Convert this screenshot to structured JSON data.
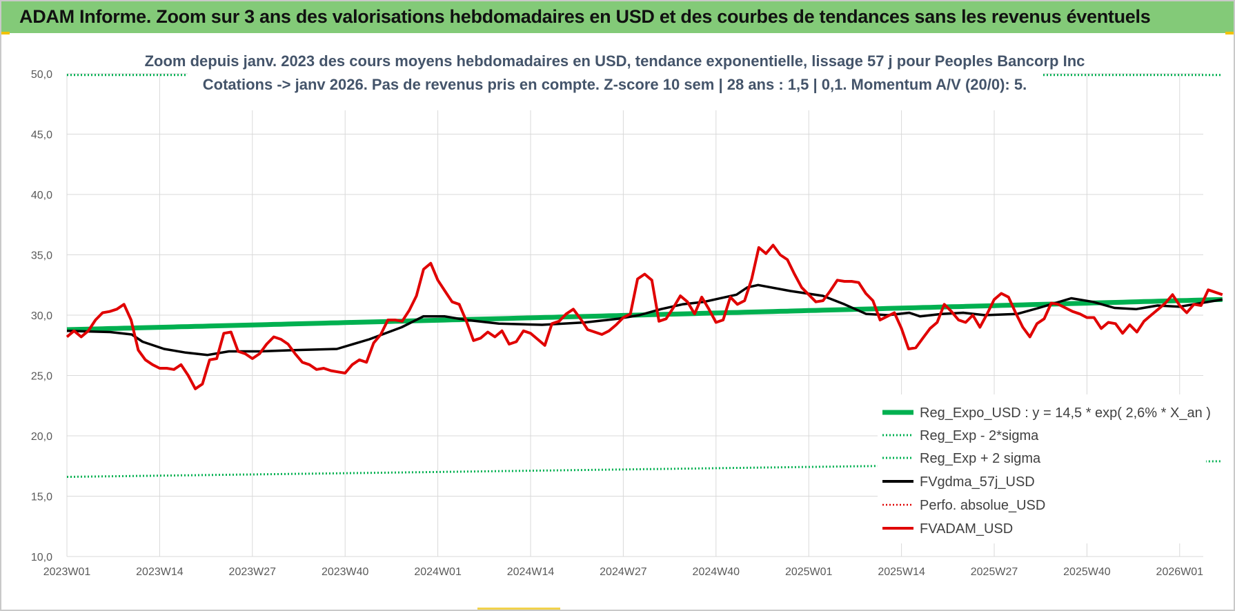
{
  "header": {
    "title": "ADAM Informe. Zoom sur 3 ans des valorisations hebdomadaires en USD et des courbes de tendances sans les revenus éventuels"
  },
  "colors": {
    "banner": "#83ca78",
    "trend": "#00b050",
    "fvgdma": "#000000",
    "fvadam": "#e00000",
    "perfo": "#e00000",
    "grid": "#d9d9d9"
  },
  "chart_data": {
    "type": "line",
    "title_line1": "Zoom depuis janv. 2023 des cours moyens hebdomadaires en USD, tendance exponentielle, lissage 57 j pour Peoples Bancorp Inc",
    "title_line2": "Cotations -> janv 2026. Pas de revenus pris en compte. Z-score 10 sem | 28 ans : 1,5 | 0,1. Momentum A/V (20/0): 5.",
    "xlabel": "",
    "ylabel": "",
    "ylim": [
      10,
      50
    ],
    "yticks": [
      "10,0",
      "15,0",
      "20,0",
      "25,0",
      "30,0",
      "35,0",
      "40,0",
      "45,0",
      "50,0"
    ],
    "x_ticks": [
      "2023W01",
      "2023W14",
      "2023W27",
      "2023W40",
      "2024W01",
      "2024W14",
      "2024W27",
      "2024W40",
      "2025W01",
      "2025W14",
      "2025W27",
      "2025W40",
      "2026W01"
    ],
    "x_count": 165,
    "gridlines": true,
    "legend_position": "bottom-right",
    "series": [
      {
        "name": "Reg_Expo_USD : y = 14,5 * exp( 2,6% *  X_an )",
        "style": "solid-thick",
        "color": "#00b050",
        "start": 28.8,
        "end": 31.3
      },
      {
        "name": "Reg_Exp - 2*sigma",
        "style": "dotted",
        "color": "#00b050",
        "start": 16.6,
        "end": 17.9
      },
      {
        "name": "Reg_Exp + 2 sigma",
        "style": "dotted",
        "color": "#00b050",
        "start": 49.9,
        "end": 49.9
      },
      {
        "name": "FVgdma_57j_USD",
        "style": "solid",
        "color": "#000000",
        "points": [
          [
            0,
            28.7
          ],
          [
            8,
            28.6
          ],
          [
            12,
            28.4
          ],
          [
            14,
            27.8
          ],
          [
            18,
            27.2
          ],
          [
            22,
            26.9
          ],
          [
            26,
            26.7
          ],
          [
            30,
            27.0
          ],
          [
            36,
            27.0
          ],
          [
            42,
            27.1
          ],
          [
            50,
            27.2
          ],
          [
            56,
            28.0
          ],
          [
            62,
            29.0
          ],
          [
            66,
            29.9
          ],
          [
            70,
            29.9
          ],
          [
            74,
            29.6
          ],
          [
            80,
            29.3
          ],
          [
            88,
            29.2
          ],
          [
            96,
            29.4
          ],
          [
            102,
            29.7
          ],
          [
            106,
            30.0
          ],
          [
            110,
            30.5
          ],
          [
            114,
            30.9
          ],
          [
            118,
            31.1
          ],
          [
            124,
            31.7
          ],
          [
            126,
            32.3
          ],
          [
            128,
            32.5
          ],
          [
            134,
            32.0
          ],
          [
            140,
            31.6
          ],
          [
            144,
            30.9
          ],
          [
            148,
            30.1
          ],
          [
            152,
            30.0
          ],
          [
            156,
            30.2
          ],
          [
            158,
            29.9
          ],
          [
            162,
            30.1
          ],
          [
            166,
            30.2
          ],
          [
            170,
            30.0
          ],
          [
            176,
            30.1
          ],
          [
            180,
            30.6
          ],
          [
            186,
            31.4
          ],
          [
            190,
            31.1
          ],
          [
            194,
            30.6
          ],
          [
            198,
            30.5
          ],
          [
            202,
            30.8
          ],
          [
            206,
            30.7
          ],
          [
            210,
            31.0
          ],
          [
            214,
            31.3
          ]
        ]
      },
      {
        "name": "Perfo. absolue_USD",
        "style": "dotted",
        "color": "#e00000",
        "visible_line": false
      },
      {
        "name": "FVADAM_USD",
        "style": "solid-thick",
        "color": "#e00000",
        "points": [
          [
            0,
            28.2
          ],
          [
            1,
            28.7
          ],
          [
            2,
            28.2
          ],
          [
            3,
            28.7
          ],
          [
            4,
            29.6
          ],
          [
            5,
            30.2
          ],
          [
            6,
            30.3
          ],
          [
            7,
            30.5
          ],
          [
            8,
            30.9
          ],
          [
            9,
            29.6
          ],
          [
            10,
            27.1
          ],
          [
            11,
            26.3
          ],
          [
            12,
            25.9
          ],
          [
            13,
            25.6
          ],
          [
            14,
            25.6
          ],
          [
            15,
            25.5
          ],
          [
            16,
            25.9
          ],
          [
            17,
            25.0
          ],
          [
            18,
            23.9
          ],
          [
            19,
            24.3
          ],
          [
            20,
            26.3
          ],
          [
            21,
            26.4
          ],
          [
            22,
            28.5
          ],
          [
            23,
            28.6
          ],
          [
            24,
            27.0
          ],
          [
            25,
            26.8
          ],
          [
            26,
            26.4
          ],
          [
            27,
            26.8
          ],
          [
            28,
            27.6
          ],
          [
            29,
            28.2
          ],
          [
            30,
            28.0
          ],
          [
            31,
            27.6
          ],
          [
            32,
            26.8
          ],
          [
            33,
            26.1
          ],
          [
            34,
            25.9
          ],
          [
            35,
            25.5
          ],
          [
            36,
            25.6
          ],
          [
            37,
            25.4
          ],
          [
            38,
            25.3
          ],
          [
            39,
            25.2
          ],
          [
            40,
            25.9
          ],
          [
            41,
            26.3
          ],
          [
            42,
            26.1
          ],
          [
            43,
            27.7
          ],
          [
            44,
            28.4
          ],
          [
            45,
            29.6
          ],
          [
            46,
            29.6
          ],
          [
            47,
            29.5
          ],
          [
            48,
            30.4
          ],
          [
            49,
            31.6
          ],
          [
            50,
            33.8
          ],
          [
            51,
            34.3
          ],
          [
            52,
            32.9
          ],
          [
            53,
            32.0
          ],
          [
            54,
            31.1
          ],
          [
            55,
            30.9
          ],
          [
            56,
            29.5
          ],
          [
            57,
            27.9
          ],
          [
            58,
            28.1
          ],
          [
            59,
            28.6
          ],
          [
            60,
            28.2
          ],
          [
            61,
            28.7
          ],
          [
            62,
            27.6
          ],
          [
            63,
            27.8
          ],
          [
            64,
            28.7
          ],
          [
            65,
            28.5
          ],
          [
            66,
            28.0
          ],
          [
            67,
            27.5
          ],
          [
            68,
            29.3
          ],
          [
            69,
            29.5
          ],
          [
            70,
            30.1
          ],
          [
            71,
            30.5
          ],
          [
            72,
            29.7
          ],
          [
            73,
            28.8
          ],
          [
            74,
            28.6
          ],
          [
            75,
            28.4
          ],
          [
            76,
            28.7
          ],
          [
            77,
            29.2
          ],
          [
            78,
            29.8
          ],
          [
            79,
            30.1
          ],
          [
            80,
            33.0
          ],
          [
            81,
            33.4
          ],
          [
            82,
            32.9
          ],
          [
            83,
            29.5
          ],
          [
            84,
            29.7
          ],
          [
            85,
            30.6
          ],
          [
            86,
            31.6
          ],
          [
            87,
            31.1
          ],
          [
            88,
            30.1
          ],
          [
            89,
            31.5
          ],
          [
            90,
            30.5
          ],
          [
            91,
            29.4
          ],
          [
            92,
            29.6
          ],
          [
            93,
            31.5
          ],
          [
            94,
            30.9
          ],
          [
            95,
            31.2
          ],
          [
            96,
            33.0
          ],
          [
            97,
            35.6
          ],
          [
            98,
            35.1
          ],
          [
            99,
            35.8
          ],
          [
            100,
            35.0
          ],
          [
            101,
            34.6
          ],
          [
            102,
            33.4
          ],
          [
            103,
            32.3
          ],
          [
            104,
            31.7
          ],
          [
            105,
            31.1
          ],
          [
            106,
            31.2
          ],
          [
            107,
            32.0
          ],
          [
            108,
            32.9
          ],
          [
            109,
            32.8
          ],
          [
            110,
            32.8
          ],
          [
            111,
            32.7
          ],
          [
            112,
            31.8
          ],
          [
            113,
            31.2
          ],
          [
            114,
            29.6
          ],
          [
            115,
            29.9
          ],
          [
            116,
            30.2
          ],
          [
            117,
            28.9
          ],
          [
            118,
            27.2
          ],
          [
            119,
            27.3
          ],
          [
            120,
            28.1
          ],
          [
            121,
            28.9
          ],
          [
            122,
            29.4
          ],
          [
            123,
            30.9
          ],
          [
            124,
            30.3
          ],
          [
            125,
            29.6
          ],
          [
            126,
            29.4
          ],
          [
            127,
            30.0
          ],
          [
            128,
            29.0
          ],
          [
            129,
            30.1
          ],
          [
            130,
            31.3
          ],
          [
            131,
            31.8
          ],
          [
            132,
            31.5
          ],
          [
            133,
            30.2
          ],
          [
            134,
            29.0
          ],
          [
            135,
            28.2
          ],
          [
            136,
            29.3
          ],
          [
            137,
            29.7
          ],
          [
            138,
            31.0
          ],
          [
            139,
            30.9
          ],
          [
            140,
            30.6
          ],
          [
            141,
            30.3
          ],
          [
            142,
            30.1
          ],
          [
            143,
            29.8
          ],
          [
            144,
            29.8
          ],
          [
            145,
            28.9
          ],
          [
            146,
            29.4
          ],
          [
            147,
            29.3
          ],
          [
            148,
            28.5
          ],
          [
            149,
            29.2
          ],
          [
            150,
            28.6
          ],
          [
            151,
            29.5
          ],
          [
            152,
            30.0
          ],
          [
            153,
            30.5
          ],
          [
            154,
            31.0
          ],
          [
            155,
            31.7
          ],
          [
            156,
            30.8
          ],
          [
            157,
            30.2
          ],
          [
            158,
            30.9
          ],
          [
            159,
            30.8
          ],
          [
            160,
            32.1
          ],
          [
            161,
            31.9
          ],
          [
            162,
            31.7
          ]
        ]
      }
    ]
  }
}
